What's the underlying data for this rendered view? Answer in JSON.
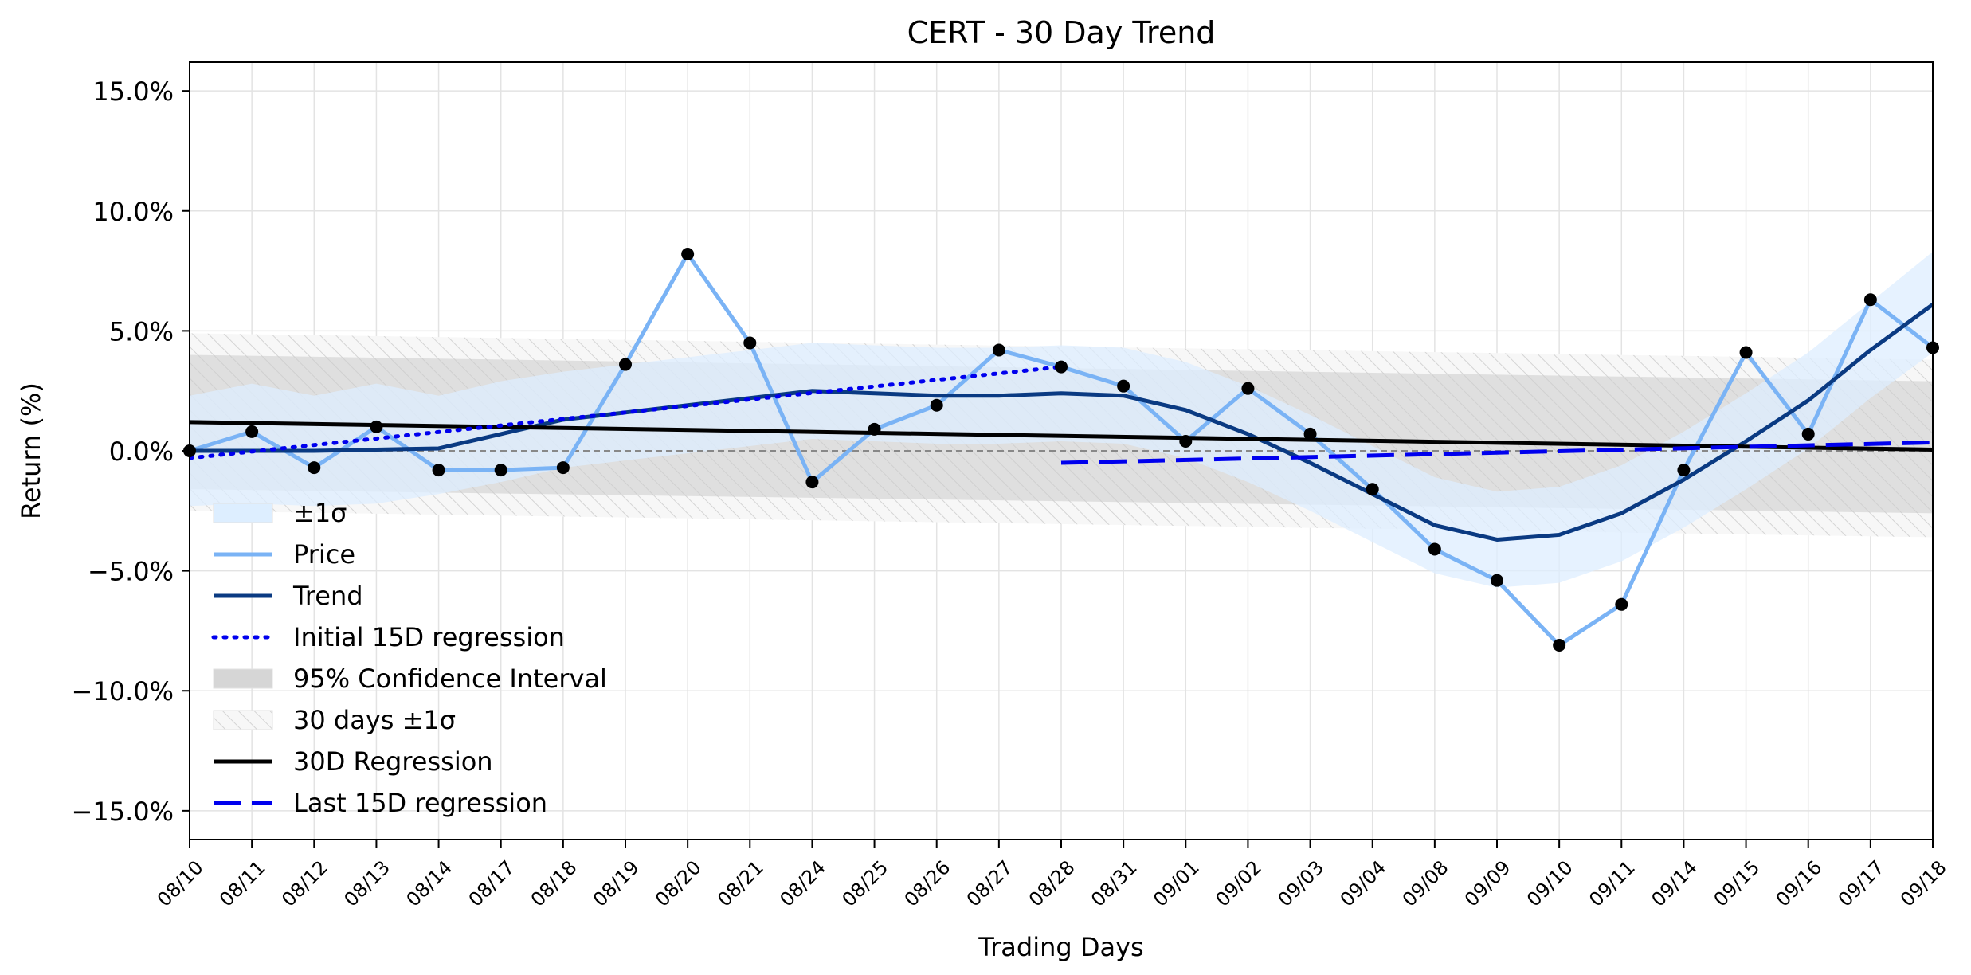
{
  "chart_data": {
    "type": "line",
    "title": "CERT - 30 Day Trend",
    "xlabel": "Trading Days",
    "ylabel": "Return (%)",
    "ylim": [
      -16.2,
      16.2
    ],
    "yticks": [
      -15,
      -10,
      -5,
      0,
      5,
      10,
      15
    ],
    "ytick_labels": [
      "−15.0%",
      "−10.0%",
      "−5.0%",
      "0.0%",
      "5.0%",
      "10.0%",
      "15.0%"
    ],
    "grid": true,
    "legend_position": "lower-left",
    "categories": [
      "08/10",
      "08/11",
      "08/12",
      "08/13",
      "08/14",
      "08/17",
      "08/18",
      "08/19",
      "08/20",
      "08/21",
      "08/24",
      "08/25",
      "08/26",
      "08/27",
      "08/28",
      "08/31",
      "09/01",
      "09/02",
      "09/03",
      "09/04",
      "09/08",
      "09/09",
      "09/10",
      "09/11",
      "09/14",
      "09/15",
      "09/16",
      "09/17",
      "09/18"
    ],
    "series": [
      {
        "name": "Price",
        "color": "#7ab3f5",
        "values": [
          0.0,
          0.8,
          -0.7,
          1.0,
          -0.8,
          -0.8,
          -0.7,
          3.6,
          8.2,
          4.5,
          -1.3,
          0.9,
          1.9,
          4.2,
          3.5,
          2.7,
          0.4,
          2.6,
          0.7,
          -1.6,
          -4.1,
          -5.4,
          -8.1,
          -6.4,
          -0.8,
          4.1,
          0.7,
          6.3,
          4.3
        ]
      },
      {
        "name": "Trend",
        "color": "#0a3a82",
        "values": [
          0.0,
          0.0,
          0.0,
          0.05,
          0.1,
          0.7,
          1.3,
          1.6,
          1.9,
          2.2,
          2.5,
          2.4,
          2.3,
          2.3,
          2.4,
          2.3,
          1.7,
          0.7,
          -0.5,
          -1.8,
          -3.1,
          -3.7,
          -3.5,
          -2.6,
          -1.2,
          0.4,
          2.1,
          4.2,
          6.1
        ]
      },
      {
        "name": "Initial 15D regression",
        "color": "#0000ee",
        "style": "dotted",
        "x_range": [
          0,
          14
        ],
        "start": -0.3,
        "end": 3.5
      },
      {
        "name": "30D Regression",
        "color": "#000000",
        "x_range": [
          0,
          28
        ],
        "start": 1.2,
        "end": 0.05
      },
      {
        "name": "Last 15D regression",
        "color": "#0000ee",
        "style": "dashed",
        "x_range": [
          14,
          28
        ],
        "start": -0.5,
        "end": 0.35
      }
    ],
    "bands": [
      {
        "name": "±1σ",
        "color": "#ddeeff",
        "upper": [
          2.3,
          2.8,
          2.3,
          2.8,
          2.3,
          2.9,
          3.3,
          3.6,
          3.9,
          4.2,
          4.5,
          4.4,
          4.3,
          4.3,
          4.4,
          4.3,
          3.7,
          2.7,
          1.5,
          0.2,
          -1.1,
          -1.7,
          -1.5,
          -0.6,
          0.8,
          2.4,
          4.1,
          6.2,
          8.3
        ],
        "lower": [
          -2.3,
          -2.2,
          -2.3,
          -2.2,
          -1.8,
          -1.3,
          -0.7,
          -0.4,
          -0.1,
          0.2,
          0.5,
          0.4,
          0.3,
          0.3,
          0.4,
          0.3,
          -0.3,
          -1.3,
          -2.5,
          -3.8,
          -5.1,
          -5.7,
          -5.5,
          -4.6,
          -3.2,
          -1.6,
          0.1,
          2.2,
          4.1
        ]
      },
      {
        "name": "95% Confidence Interval",
        "color": "#cccccc",
        "upper_start": 4.0,
        "upper_end": 2.9,
        "lower_start": -1.6,
        "lower_end": -2.6
      },
      {
        "name": "30 days ±1σ",
        "color": "#e6e6e6",
        "hatched": true,
        "upper_start": 4.9,
        "upper_end": 3.8,
        "lower_start": -2.5,
        "lower_end": -3.6
      }
    ],
    "markers": "Price",
    "zero_line": true
  }
}
